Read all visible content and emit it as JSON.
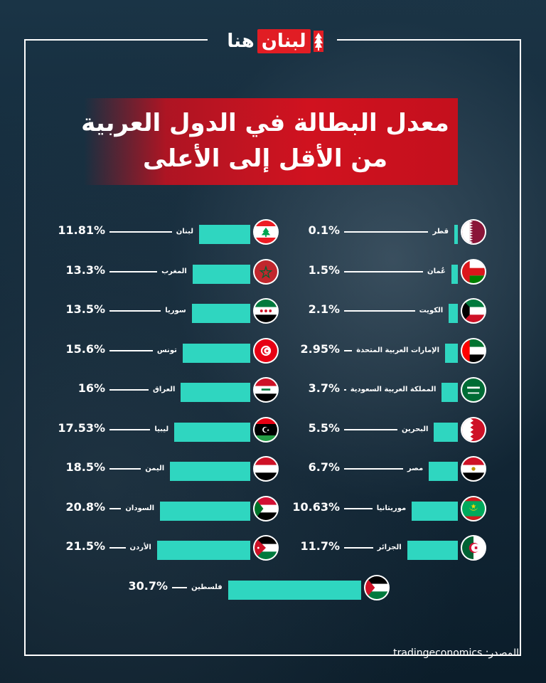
{
  "brand": {
    "logo_lubnan": "لبنان",
    "logo_huna": "هنا"
  },
  "title": {
    "line1": "معدل البطالة في الدول العربية",
    "line2": "من الأقل إلى الأعلى"
  },
  "source": {
    "label": "المصدر:",
    "value": "tradingeconomics"
  },
  "colors": {
    "bar": "#2fd6c0",
    "title_band": "#d0121f",
    "background": "#0f2433"
  },
  "chart_data": {
    "type": "bar",
    "title": "معدل البطالة في الدول العربية من الأقل إلى الأعلى",
    "value_unit": "%",
    "series": [
      {
        "values": [
          {
            "country": "قطر",
            "value": 0.1,
            "label": "0.1%",
            "flag": "qatar-flag"
          },
          {
            "country": "عُمان",
            "value": 1.5,
            "label": "1.5%",
            "flag": "oman-flag"
          },
          {
            "country": "الكويت",
            "value": 2.1,
            "label": "2.1%",
            "flag": "kuwait-flag"
          },
          {
            "country": "الإمارات العربية المتحدة",
            "value": 2.95,
            "label": "2.95%",
            "flag": "uae-flag"
          },
          {
            "country": "المملكة العربية السعودية",
            "value": 3.7,
            "label": "3.7%",
            "flag": "saudi-flag"
          },
          {
            "country": "البحرين",
            "value": 5.5,
            "label": "5.5%",
            "flag": "bahrain-flag"
          },
          {
            "country": "مصر",
            "value": 6.7,
            "label": "6.7%",
            "flag": "egypt-flag"
          },
          {
            "country": "موريتانيا",
            "value": 10.63,
            "label": "10.63%",
            "flag": "mauritania-flag"
          },
          {
            "country": "الجزائر",
            "value": 11.7,
            "label": "11.7%",
            "flag": "algeria-flag"
          },
          {
            "country": "لبنان",
            "value": 11.81,
            "label": "11.81%",
            "flag": "lebanon-flag"
          },
          {
            "country": "المغرب",
            "value": 13.3,
            "label": "13.3%",
            "flag": "morocco-flag"
          },
          {
            "country": "سوريا",
            "value": 13.5,
            "label": "13.5%",
            "flag": "syria-flag"
          },
          {
            "country": "تونس",
            "value": 15.6,
            "label": "15.6%",
            "flag": "tunisia-flag"
          },
          {
            "country": "العراق",
            "value": 16,
            "label": "16%",
            "flag": "iraq-flag"
          },
          {
            "country": "ليبيا",
            "value": 17.53,
            "label": "17.53%",
            "flag": "libya-flag"
          },
          {
            "country": "اليمن",
            "value": 18.5,
            "label": "18.5%",
            "flag": "yemen-flag"
          },
          {
            "country": "السودان",
            "value": 20.8,
            "label": "20.8%",
            "flag": "sudan-flag"
          },
          {
            "country": "الأردن",
            "value": 21.5,
            "label": "21.5%",
            "flag": "jordan-flag"
          },
          {
            "country": "فلسطين",
            "value": 30.7,
            "label": "30.7%",
            "flag": "palestine-flag"
          }
        ]
      }
    ]
  }
}
